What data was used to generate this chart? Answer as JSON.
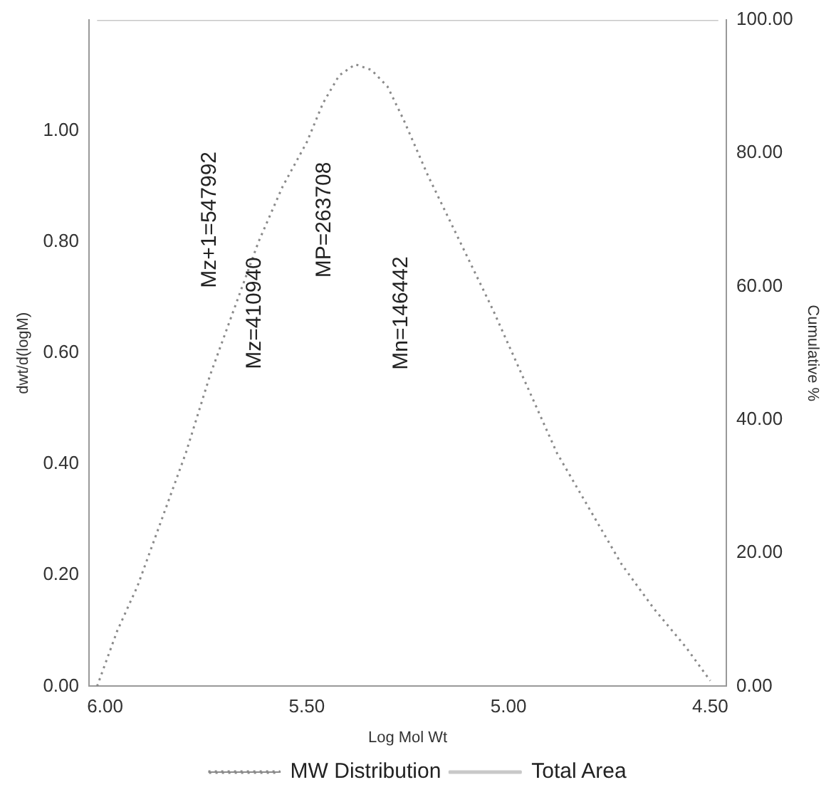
{
  "chart_data": {
    "type": "line",
    "xlabel": "Log Mol Wt",
    "ylabel": "dwt/d(logM)",
    "y2label": "Cumulative %",
    "xlim": [
      6.04,
      4.46
    ],
    "xticks": [
      {
        "value": 6,
        "label": "6.00"
      },
      {
        "value": 5.5,
        "label": "5.50"
      },
      {
        "value": 5,
        "label": "5.00"
      },
      {
        "value": 4.5,
        "label": "4.50"
      }
    ],
    "ylim": [
      0,
      1.2
    ],
    "yticks": [
      {
        "value": 0,
        "label": "0.00"
      },
      {
        "value": 0.2,
        "label": "0.20"
      },
      {
        "value": 0.4,
        "label": "0.40"
      },
      {
        "value": 0.6,
        "label": "0.60"
      },
      {
        "value": 0.8,
        "label": "0.80"
      },
      {
        "value": 1,
        "label": "1.00"
      }
    ],
    "y2lim": [
      0,
      100
    ],
    "y2ticks": [
      {
        "value": 0,
        "label": "0.00"
      },
      {
        "value": 20,
        "label": "20.00"
      },
      {
        "value": 40,
        "label": "40.00"
      },
      {
        "value": 60,
        "label": "60.00"
      },
      {
        "value": 80,
        "label": "80.00"
      },
      {
        "value": 100,
        "label": "100.00"
      }
    ],
    "series": [
      {
        "name": "MW Distribution",
        "color": "#8a8a8a",
        "line_style": "dotted",
        "x": [
          6.02,
          5.97,
          5.92,
          5.86,
          5.8,
          5.74,
          5.68,
          5.62,
          5.56,
          5.5,
          5.46,
          5.42,
          5.38,
          5.34,
          5.3,
          5.26,
          5.2,
          5.12,
          5.04,
          4.96,
          4.88,
          4.8,
          4.72,
          4.64,
          4.56,
          4.5
        ],
        "values": [
          0.0,
          0.1,
          0.18,
          0.3,
          0.42,
          0.56,
          0.68,
          0.8,
          0.9,
          0.98,
          1.05,
          1.1,
          1.12,
          1.11,
          1.08,
          1.02,
          0.92,
          0.8,
          0.68,
          0.55,
          0.42,
          0.32,
          0.22,
          0.14,
          0.07,
          0.01
        ]
      },
      {
        "name": "Total Area",
        "color": "#c8c8c8",
        "axis": "y2",
        "line_style": "solid",
        "x": [
          6.02,
          4.48
        ],
        "values": [
          100,
          100
        ]
      }
    ],
    "annotations": [
      "Mz+1=547992",
      "Mz=410940",
      "MP=263708",
      "Mn=146442"
    ],
    "grid": false,
    "legend": "bottom",
    "marker": "none"
  }
}
